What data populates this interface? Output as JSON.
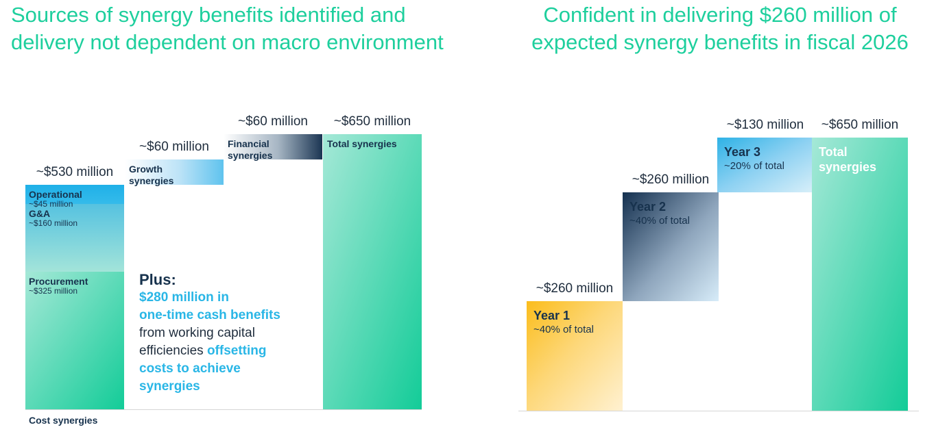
{
  "titles": {
    "left": "Sources of synergy benefits identified and delivery not dependent on macro environment",
    "right": "Confident in delivering $260 million of expected synergy benefits in fiscal 2026"
  },
  "plus_note": {
    "heading": "Plus:",
    "line1": "$280 million in",
    "line2": "one-time cash benefits",
    "line3": "from working capital",
    "line4a": "efficiencies ",
    "line4b": "offsetting",
    "line5": "costs to achieve",
    "line6": "synergies"
  },
  "colors": {
    "title_green": "#1ecf9d",
    "green": "#1ecf9d",
    "blue": "#29b6e6",
    "navy": "#17324d",
    "gold": "#fbbd1c"
  },
  "chart_data": [
    {
      "type": "bar",
      "subtype": "waterfall",
      "xlabel": "Cost synergies",
      "ylabel": "",
      "ylim": [
        0,
        650
      ],
      "grid": false,
      "categories": [
        "Cost synergies",
        "Growth synergies",
        "Financial synergies",
        "Total synergies"
      ],
      "value_labels": [
        "~$530 million",
        "~$60 million",
        "~$60 million",
        "~$650 million"
      ],
      "bars": [
        {
          "label": "",
          "value_label": "~$530 million",
          "base": 0,
          "value": 530,
          "segments": [
            {
              "name": "Procurement",
              "sub": "~$325 million",
              "value": 325,
              "color": "green"
            },
            {
              "name": "G&A",
              "sub": "~$160 million",
              "value": 160,
              "color": "green-blue"
            },
            {
              "name": "Operational",
              "sub": "~$45 million",
              "value": 45,
              "color": "blue"
            }
          ]
        },
        {
          "label": "Growth\nsynergies",
          "value_label": "~$60 million",
          "base": 530,
          "value": 60,
          "color": "blue-white"
        },
        {
          "label": "Financial\nsynergies",
          "value_label": "~$60 million",
          "base": 590,
          "value": 60,
          "color": "navy-white"
        },
        {
          "label": "Total synergies",
          "value_label": "~$650 million",
          "base": 0,
          "value": 650,
          "color": "green"
        }
      ]
    },
    {
      "type": "bar",
      "subtype": "waterfall",
      "xlabel": "",
      "ylabel": "",
      "ylim": [
        0,
        650
      ],
      "grid": false,
      "categories": [
        "Year 1",
        "Year 2",
        "Year 3",
        "Total synergies"
      ],
      "bars": [
        {
          "label": "Year 1",
          "sub": "~40% of total",
          "value_label": "~$260 million",
          "base": 0,
          "value": 260,
          "color": "gold"
        },
        {
          "label": "Year 2",
          "sub": "~40% of total",
          "value_label": "~$260 million",
          "base": 260,
          "value": 260,
          "color": "navy"
        },
        {
          "label": "Year 3",
          "sub": "~20% of total",
          "value_label": "~$130 million",
          "base": 520,
          "value": 130,
          "color": "blue"
        },
        {
          "label": "Total\nsynergies",
          "sub": "",
          "value_label": "~$650 million",
          "base": 0,
          "value": 650,
          "color": "green"
        }
      ]
    }
  ]
}
